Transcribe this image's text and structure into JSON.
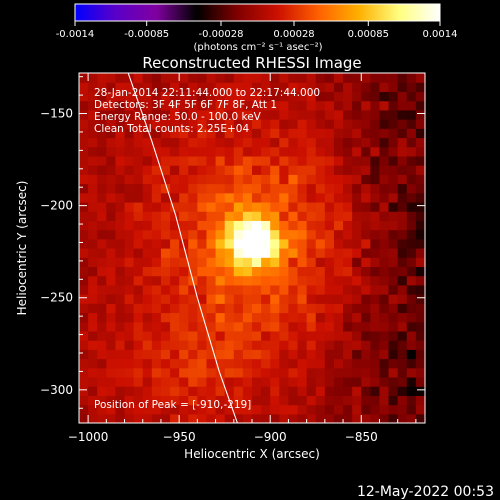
{
  "colorbar": {
    "min": -0.0014,
    "max": 0.0014,
    "tick_labels": [
      "-0.0014",
      "-0.00085",
      "-0.00028",
      "0.00028",
      "0.00085",
      "0.0014"
    ],
    "tick_values": [
      -0.0014,
      -0.00085,
      -0.00028,
      0.00028,
      0.00085,
      0.0014
    ],
    "unit_label": "(photons cm⁻² s⁻¹ asec⁻²)",
    "colormap": [
      "#0000ff",
      "#5a00c8",
      "#8000a0",
      "#000000",
      "#800000",
      "#cc1000",
      "#ff6000",
      "#ffb000",
      "#ffff80",
      "#ffffff"
    ]
  },
  "chart_data": {
    "type": "heatmap",
    "title": "Reconstructed RHESSI Image",
    "xlabel": "Heliocentric X (arcsec)",
    "ylabel": "Heliocentric Y (arcsec)",
    "xlim": [
      -1005,
      -815
    ],
    "ylim": [
      -318,
      -128
    ],
    "x_ticks": [
      -1000,
      -950,
      -900,
      -850
    ],
    "y_ticks": [
      -300,
      -250,
      -200,
      -150
    ],
    "x_tick_labels": [
      "−1000",
      "−950",
      "−900",
      "−850"
    ],
    "y_tick_labels": [
      "−300",
      "−250",
      "−200",
      "−150"
    ],
    "peak": {
      "x": -910,
      "y": -219,
      "value": 0.0014
    },
    "limb_curve": [
      [
        -978,
        -128
      ],
      [
        -965,
        -165
      ],
      [
        -952,
        -205
      ],
      [
        -940,
        -250
      ],
      [
        -928,
        -290
      ],
      [
        -918,
        -318
      ]
    ],
    "annotations": [
      "28-Jan-2014 22:11:44.000 to 22:17:44.000",
      "Detectors: 3F 4F 5F 6F 7F 8F, Att 1",
      "Energy Range: 50.0 - 100.0 keV",
      "Clean     Total counts: 2.25E+04"
    ],
    "peak_label": "Position of Peak = [-910,-219]"
  },
  "footer": {
    "timestamp": "12-May-2022 00:53"
  }
}
